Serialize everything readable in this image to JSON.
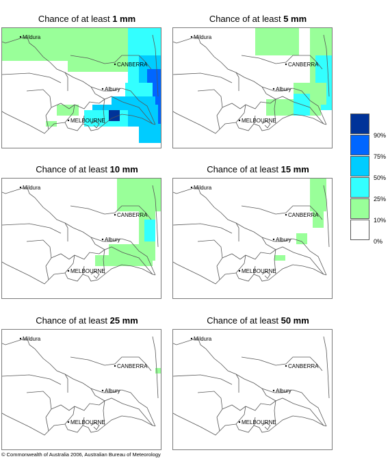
{
  "panels": [
    {
      "title_prefix": "Chance of at least ",
      "amount": "1 mm"
    },
    {
      "title_prefix": "Chance of at least ",
      "amount": "5 mm"
    },
    {
      "title_prefix": "Chance of at least ",
      "amount": "10 mm"
    },
    {
      "title_prefix": "Chance of at least ",
      "amount": "15 mm"
    },
    {
      "title_prefix": "Chance of at least ",
      "amount": "25 mm"
    },
    {
      "title_prefix": "Chance of at least ",
      "amount": "50 mm"
    }
  ],
  "cities": {
    "mildura": "Mildura",
    "canberra": "CANBERRA",
    "albury": "Albury",
    "melbourne": "MELBOURNE"
  },
  "legend": {
    "labels": [
      "90%",
      "75%",
      "50%",
      "25%",
      "10%",
      "0%"
    ],
    "colors": [
      "#003399",
      "#0066ff",
      "#00ccff",
      "#33ffff",
      "#99ff99",
      "#ffffff"
    ]
  },
  "copyright": "© Commonwealth of Australia 2006, Australian Bureau of Meteorology"
}
